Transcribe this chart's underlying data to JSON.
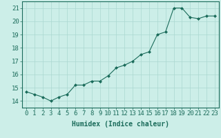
{
  "x": [
    0,
    1,
    2,
    3,
    4,
    5,
    6,
    7,
    8,
    9,
    10,
    11,
    12,
    13,
    14,
    15,
    16,
    17,
    18,
    19,
    20,
    21,
    22,
    23
  ],
  "y": [
    14.7,
    14.5,
    14.3,
    14.0,
    14.3,
    14.5,
    15.2,
    15.2,
    15.5,
    15.5,
    15.9,
    16.5,
    16.7,
    17.0,
    17.5,
    17.7,
    19.0,
    19.2,
    21.0,
    21.0,
    20.3,
    20.2,
    20.4,
    20.4
  ],
  "line_color": "#1a6b5a",
  "marker": "D",
  "marker_size": 2.0,
  "bg_color": "#cceee8",
  "grid_color": "#aad8d0",
  "xlabel": "Humidex (Indice chaleur)",
  "xlim": [
    -0.5,
    23.5
  ],
  "ylim": [
    13.5,
    21.5
  ],
  "yticks": [
    14,
    15,
    16,
    17,
    18,
    19,
    20,
    21
  ],
  "xticks": [
    0,
    1,
    2,
    3,
    4,
    5,
    6,
    7,
    8,
    9,
    10,
    11,
    12,
    13,
    14,
    15,
    16,
    17,
    18,
    19,
    20,
    21,
    22,
    23
  ],
  "xlabel_fontsize": 7,
  "tick_fontsize": 6.5
}
